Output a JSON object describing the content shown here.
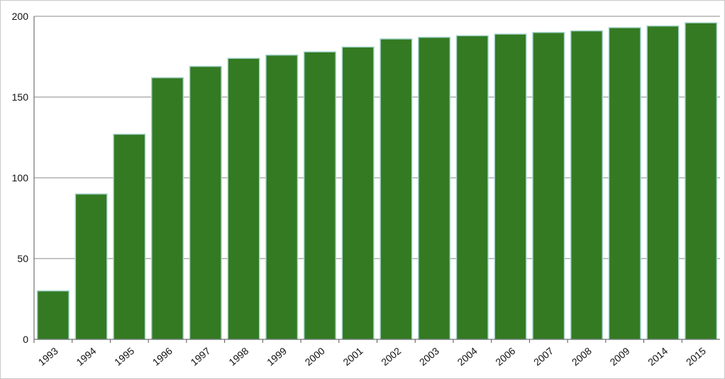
{
  "chart_data": {
    "type": "bar",
    "title": "",
    "xlabel": "",
    "ylabel": "",
    "categories": [
      "1993",
      "1994",
      "1995",
      "1996",
      "1997",
      "1998",
      "1999",
      "2000",
      "2001",
      "2002",
      "2003",
      "2004",
      "2006",
      "2007",
      "2008",
      "2009",
      "2014",
      "2015"
    ],
    "values": [
      30,
      90,
      127,
      162,
      169,
      174,
      176,
      178,
      181,
      186,
      187,
      188,
      189,
      190,
      191,
      193,
      194,
      196
    ],
    "ylim": [
      0,
      200
    ],
    "yticks": [
      "0",
      "50",
      "100",
      "150",
      "200"
    ],
    "grid": true,
    "colors": {
      "bar_fill": "#347a22",
      "bar_stroke": "#a9d6cf",
      "grid": "#8a8a8a",
      "axis": "#555555"
    }
  }
}
